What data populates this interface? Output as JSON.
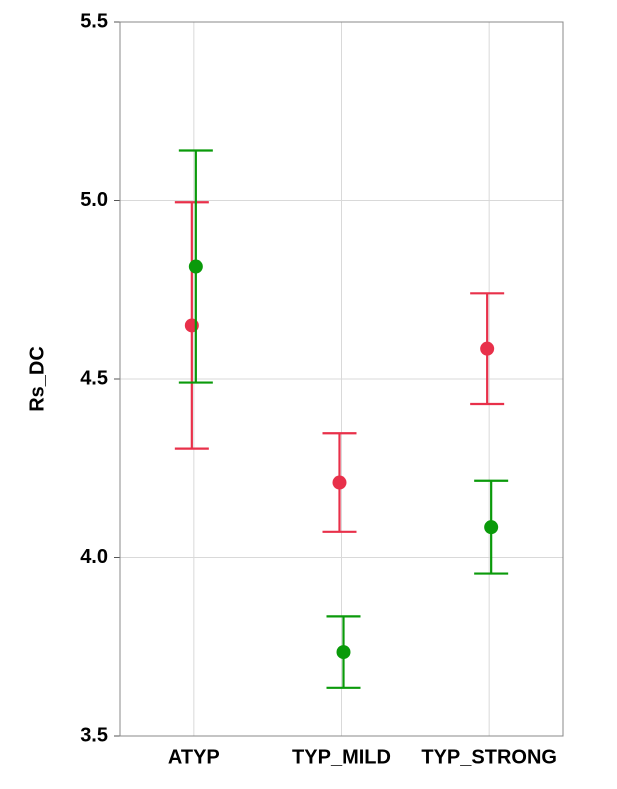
{
  "chart_data": {
    "type": "errorbar",
    "y_label": "Rs_DC",
    "categories": [
      "ATYP",
      "TYP_MILD",
      "TYP_STRONG"
    ],
    "series": [
      {
        "color": "#e8304a",
        "values": [
          4.65,
          4.21,
          4.585
        ],
        "errors": [
          0.345,
          0.138,
          0.155
        ]
      },
      {
        "color": "#0a9a0a",
        "values": [
          4.815,
          3.735,
          4.085
        ],
        "errors": [
          0.325,
          0.1,
          0.13
        ]
      }
    ],
    "ylim": [
      3.5,
      5.5
    ],
    "yticks": [
      3.5,
      {
        "value": 4,
        "label": "4.0"
      },
      4.5,
      {
        "value": 5,
        "label": "5.0"
      },
      5.5
    ],
    "grid": true
  }
}
